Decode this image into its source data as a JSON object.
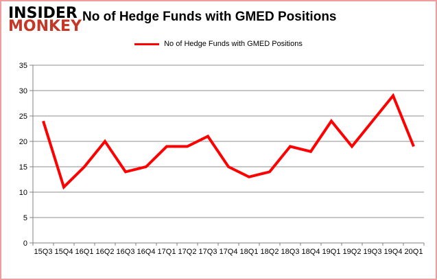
{
  "branding": {
    "logo_line1": "INSIDER",
    "logo_line2": "MONKEY"
  },
  "header": {
    "title": "No of Hedge Funds with GMED Positions"
  },
  "legend": {
    "label": "No of Hedge Funds with GMED Positions"
  },
  "chart_data": {
    "type": "line",
    "title": "No of Hedge Funds with GMED Positions",
    "categories": [
      "15Q3",
      "15Q4",
      "16Q1",
      "16Q2",
      "16Q3",
      "16Q4",
      "17Q1",
      "17Q2",
      "17Q3",
      "17Q4",
      "18Q1",
      "18Q2",
      "18Q3",
      "18Q4",
      "19Q1",
      "19Q2",
      "19Q3",
      "19Q4",
      "20Q1"
    ],
    "series": [
      {
        "name": "No of Hedge Funds with GMED Positions",
        "color": "#ff0000",
        "values": [
          24,
          11,
          15,
          20,
          14,
          15,
          19,
          19,
          21,
          15,
          13,
          14,
          19,
          18,
          24,
          19,
          24,
          29,
          19
        ]
      }
    ],
    "xlabel": "",
    "ylabel": "",
    "ylim": [
      0,
      35
    ],
    "yticks": [
      0,
      5,
      10,
      15,
      20,
      25,
      30,
      35
    ],
    "grid": "horizontal",
    "legend_position": "top"
  },
  "colors": {
    "line": "#ff0000",
    "grid": "#8c8c8c",
    "axis": "#808080",
    "text": "#000000",
    "border": "#ee9c9c",
    "logo_black": "#000000",
    "logo_red": "#c53727"
  }
}
